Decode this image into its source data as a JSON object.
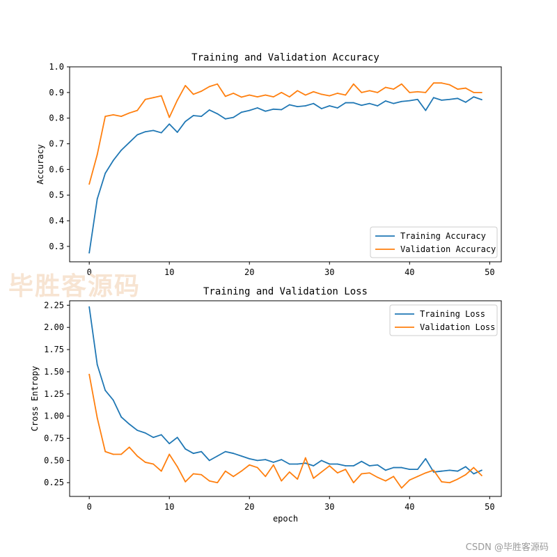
{
  "colors": {
    "train": "#1f77b4",
    "val": "#ff7f0e",
    "axis": "#000000",
    "bg": "#ffffff"
  },
  "watermark_text": "毕胜客源码",
  "footer_text": "CSDN @毕胜客源码",
  "chart_data": [
    {
      "type": "line",
      "title": "Training and Validation Accuracy",
      "xlabel": "",
      "ylabel": "Accuracy",
      "xlim": [
        -2.45,
        51.45
      ],
      "ylim": [
        0.24,
        1.0
      ],
      "xticks": [
        0,
        10,
        20,
        30,
        40,
        50
      ],
      "yticks": [
        0.3,
        0.4,
        0.5,
        0.6,
        0.7,
        0.8,
        0.9,
        1.0
      ],
      "ytick_labels": [
        "0.3",
        "0.4",
        "0.5",
        "0.6",
        "0.7",
        "0.8",
        "0.9",
        "1.0"
      ],
      "legend_position": "lower-right",
      "x": [
        0,
        1,
        2,
        3,
        4,
        5,
        6,
        7,
        8,
        9,
        10,
        11,
        12,
        13,
        14,
        15,
        16,
        17,
        18,
        19,
        20,
        21,
        22,
        23,
        24,
        25,
        26,
        27,
        28,
        29,
        30,
        31,
        32,
        33,
        34,
        35,
        36,
        37,
        38,
        39,
        40,
        41,
        42,
        43,
        44,
        45,
        46,
        47,
        48,
        49
      ],
      "series": [
        {
          "name": "Training Accuracy",
          "color": "#1f77b4",
          "values": [
            0.275,
            0.485,
            0.585,
            0.635,
            0.675,
            0.705,
            0.735,
            0.747,
            0.752,
            0.743,
            0.777,
            0.745,
            0.787,
            0.81,
            0.807,
            0.832,
            0.817,
            0.797,
            0.803,
            0.823,
            0.83,
            0.84,
            0.827,
            0.835,
            0.833,
            0.852,
            0.845,
            0.848,
            0.857,
            0.837,
            0.848,
            0.84,
            0.86,
            0.86,
            0.85,
            0.857,
            0.848,
            0.867,
            0.857,
            0.865,
            0.868,
            0.873,
            0.83,
            0.88,
            0.87,
            0.873,
            0.877,
            0.862,
            0.883,
            0.872
          ]
        },
        {
          "name": "Validation Accuracy",
          "color": "#ff7f0e",
          "values": [
            0.543,
            0.658,
            0.807,
            0.813,
            0.807,
            0.82,
            0.83,
            0.873,
            0.88,
            0.887,
            0.803,
            0.87,
            0.927,
            0.893,
            0.905,
            0.923,
            0.933,
            0.885,
            0.897,
            0.882,
            0.89,
            0.883,
            0.89,
            0.883,
            0.9,
            0.883,
            0.907,
            0.89,
            0.903,
            0.893,
            0.887,
            0.897,
            0.89,
            0.933,
            0.9,
            0.907,
            0.9,
            0.92,
            0.913,
            0.933,
            0.9,
            0.903,
            0.9,
            0.937,
            0.937,
            0.93,
            0.913,
            0.917,
            0.9,
            0.9
          ]
        }
      ]
    },
    {
      "type": "line",
      "title": "Training and Validation Loss",
      "xlabel": "epoch",
      "ylabel": "Cross Entropy",
      "xlim": [
        -2.45,
        51.45
      ],
      "ylim": [
        0.095,
        2.3
      ],
      "xticks": [
        0,
        10,
        20,
        30,
        40,
        50
      ],
      "yticks": [
        0.25,
        0.5,
        0.75,
        1.0,
        1.25,
        1.5,
        1.75,
        2.0,
        2.25
      ],
      "ytick_labels": [
        "0.25",
        "0.50",
        "0.75",
        "1.00",
        "1.25",
        "1.50",
        "1.75",
        "2.00",
        "2.25"
      ],
      "legend_position": "upper-right",
      "x": [
        0,
        1,
        2,
        3,
        4,
        5,
        6,
        7,
        8,
        9,
        10,
        11,
        12,
        13,
        14,
        15,
        16,
        17,
        18,
        19,
        20,
        21,
        22,
        23,
        24,
        25,
        26,
        27,
        28,
        29,
        30,
        31,
        32,
        33,
        34,
        35,
        36,
        37,
        38,
        39,
        40,
        41,
        42,
        43,
        44,
        45,
        46,
        47,
        48,
        49
      ],
      "series": [
        {
          "name": "Training Loss",
          "color": "#1f77b4",
          "values": [
            2.23,
            1.58,
            1.29,
            1.18,
            0.99,
            0.91,
            0.84,
            0.81,
            0.76,
            0.79,
            0.69,
            0.76,
            0.63,
            0.58,
            0.6,
            0.5,
            0.55,
            0.6,
            0.58,
            0.55,
            0.52,
            0.5,
            0.51,
            0.48,
            0.51,
            0.46,
            0.46,
            0.47,
            0.44,
            0.5,
            0.46,
            0.46,
            0.44,
            0.44,
            0.49,
            0.44,
            0.45,
            0.39,
            0.42,
            0.42,
            0.4,
            0.4,
            0.52,
            0.37,
            0.38,
            0.39,
            0.38,
            0.43,
            0.35,
            0.39
          ]
        },
        {
          "name": "Validation Loss",
          "color": "#ff7f0e",
          "values": [
            1.47,
            0.98,
            0.6,
            0.57,
            0.57,
            0.65,
            0.55,
            0.48,
            0.46,
            0.38,
            0.57,
            0.43,
            0.26,
            0.35,
            0.34,
            0.27,
            0.25,
            0.38,
            0.32,
            0.38,
            0.45,
            0.42,
            0.32,
            0.45,
            0.27,
            0.37,
            0.29,
            0.53,
            0.3,
            0.37,
            0.44,
            0.36,
            0.4,
            0.25,
            0.35,
            0.36,
            0.31,
            0.27,
            0.32,
            0.19,
            0.28,
            0.32,
            0.36,
            0.39,
            0.26,
            0.25,
            0.29,
            0.34,
            0.42,
            0.33
          ]
        }
      ]
    }
  ]
}
